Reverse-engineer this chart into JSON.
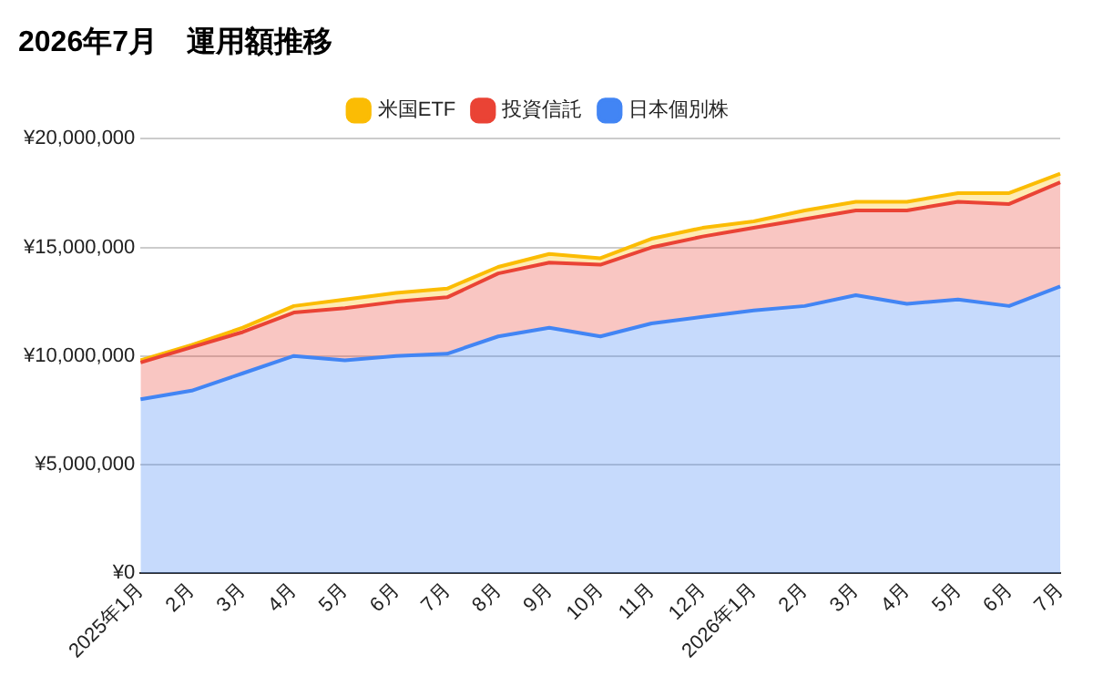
{
  "chart_data": {
    "type": "area",
    "title": "2026年7月　運用額推移",
    "stacked": true,
    "legend": "top",
    "grid": "y",
    "marker": "none",
    "line_style": "solid",
    "categories": [
      "2025年1月",
      "2月",
      "3月",
      "4月",
      "5月",
      "6月",
      "7月",
      "8月",
      "9月",
      "10月",
      "11月",
      "12月",
      "2026年1月",
      "2月",
      "3月",
      "4月",
      "5月",
      "6月",
      "7月"
    ],
    "ylim": [
      0,
      20000000
    ],
    "yticks": [
      {
        "value": 0,
        "label": "¥0"
      },
      {
        "value": 5000000,
        "label": "¥5,000,000"
      },
      {
        "value": 10000000,
        "label": "¥10,000,000"
      },
      {
        "value": 15000000,
        "label": "¥15,000,000"
      },
      {
        "value": 20000000,
        "label": "¥20,000,000"
      }
    ],
    "series": [
      {
        "name": "日本個別株",
        "color": "#4285f4",
        "values": [
          8000000,
          8400000,
          9200000,
          10000000,
          9800000,
          10000000,
          10100000,
          10900000,
          11300000,
          10900000,
          11500000,
          11800000,
          12100000,
          12300000,
          12800000,
          12400000,
          12600000,
          12300000,
          13200000
        ]
      },
      {
        "name": "投資信託",
        "color": "#ea4335",
        "values": [
          1700000,
          2000000,
          1900000,
          2000000,
          2400000,
          2500000,
          2600000,
          2900000,
          3000000,
          3300000,
          3500000,
          3700000,
          3800000,
          4000000,
          3900000,
          4300000,
          4500000,
          4700000,
          4800000
        ]
      },
      {
        "name": "米国ETF",
        "color": "#fbbc04",
        "values": [
          100000,
          100000,
          200000,
          300000,
          400000,
          400000,
          400000,
          300000,
          400000,
          300000,
          400000,
          400000,
          300000,
          400000,
          400000,
          400000,
          400000,
          500000,
          400000
        ]
      }
    ]
  }
}
